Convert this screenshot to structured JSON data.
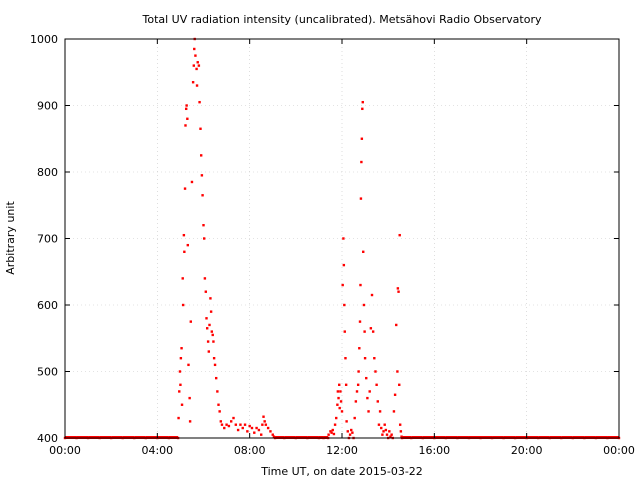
{
  "chart_data": {
    "type": "scatter",
    "title": "Total UV radiation intensity (uncalibrated). Metsähovi Radio Observatory",
    "xlabel": "Time UT, on date 2015-03-22",
    "ylabel": "Arbitrary unit",
    "xlim": [
      0,
      24
    ],
    "ylim": [
      400,
      1000
    ],
    "xticks": [
      0,
      4,
      8,
      12,
      16,
      20,
      24
    ],
    "xtick_labels": [
      "00:00",
      "04:00",
      "08:00",
      "12:00",
      "16:00",
      "20:00",
      "00:00"
    ],
    "yticks": [
      400,
      500,
      600,
      700,
      800,
      900,
      1000
    ],
    "ytick_labels": [
      "400",
      "500",
      "600",
      "700",
      "800",
      "900",
      "1000"
    ],
    "grid": true,
    "series": [
      {
        "color": "#ff0000",
        "marker": "dot",
        "points": [
          [
            0.0,
            400
          ],
          [
            0.5,
            400
          ],
          [
            1.0,
            400
          ],
          [
            1.5,
            400
          ],
          [
            2.0,
            400
          ],
          [
            2.5,
            400
          ],
          [
            3.0,
            400
          ],
          [
            3.5,
            400
          ],
          [
            4.0,
            400
          ],
          [
            4.5,
            400
          ],
          [
            4.9,
            400
          ],
          [
            4.92,
            430
          ],
          [
            4.95,
            470
          ],
          [
            4.98,
            500
          ],
          [
            5.0,
            480
          ],
          [
            5.02,
            520
          ],
          [
            5.05,
            535
          ],
          [
            5.07,
            450
          ],
          [
            5.1,
            640
          ],
          [
            5.12,
            600
          ],
          [
            5.15,
            705
          ],
          [
            5.17,
            680
          ],
          [
            5.2,
            775
          ],
          [
            5.22,
            870
          ],
          [
            5.25,
            895
          ],
          [
            5.27,
            900
          ],
          [
            5.3,
            880
          ],
          [
            5.32,
            690
          ],
          [
            5.35,
            510
          ],
          [
            5.4,
            460
          ],
          [
            5.42,
            425
          ],
          [
            5.45,
            575
          ],
          [
            5.5,
            785
          ],
          [
            5.55,
            935
          ],
          [
            5.58,
            960
          ],
          [
            5.6,
            985
          ],
          [
            5.62,
            1000
          ],
          [
            5.65,
            975
          ],
          [
            5.7,
            955
          ],
          [
            5.72,
            930
          ],
          [
            5.75,
            965
          ],
          [
            5.8,
            960
          ],
          [
            5.83,
            905
          ],
          [
            5.87,
            865
          ],
          [
            5.9,
            825
          ],
          [
            5.93,
            795
          ],
          [
            5.96,
            765
          ],
          [
            6.0,
            720
          ],
          [
            6.03,
            700
          ],
          [
            6.06,
            640
          ],
          [
            6.1,
            620
          ],
          [
            6.13,
            580
          ],
          [
            6.16,
            565
          ],
          [
            6.2,
            545
          ],
          [
            6.23,
            530
          ],
          [
            6.26,
            570
          ],
          [
            6.3,
            610
          ],
          [
            6.33,
            590
          ],
          [
            6.36,
            560
          ],
          [
            6.4,
            555
          ],
          [
            6.43,
            545
          ],
          [
            6.46,
            520
          ],
          [
            6.5,
            510
          ],
          [
            6.55,
            490
          ],
          [
            6.6,
            470
          ],
          [
            6.65,
            450
          ],
          [
            6.7,
            440
          ],
          [
            6.75,
            425
          ],
          [
            6.8,
            420
          ],
          [
            6.9,
            415
          ],
          [
            7.0,
            420
          ],
          [
            7.1,
            418
          ],
          [
            7.2,
            425
          ],
          [
            7.3,
            430
          ],
          [
            7.4,
            420
          ],
          [
            7.5,
            412
          ],
          [
            7.6,
            420
          ],
          [
            7.7,
            415
          ],
          [
            7.8,
            420
          ],
          [
            7.9,
            410
          ],
          [
            8.0,
            418
          ],
          [
            8.1,
            415
          ],
          [
            8.2,
            408
          ],
          [
            8.3,
            415
          ],
          [
            8.4,
            412
          ],
          [
            8.5,
            405
          ],
          [
            8.55,
            420
          ],
          [
            8.6,
            432
          ],
          [
            8.65,
            425
          ],
          [
            8.7,
            420
          ],
          [
            8.8,
            415
          ],
          [
            8.9,
            410
          ],
          [
            9.0,
            405
          ],
          [
            9.05,
            402
          ],
          [
            9.1,
            400
          ],
          [
            9.5,
            400
          ],
          [
            10.0,
            400
          ],
          [
            10.5,
            400
          ],
          [
            11.0,
            400
          ],
          [
            11.2,
            400
          ],
          [
            11.4,
            400
          ],
          [
            11.42,
            405
          ],
          [
            11.5,
            410
          ],
          [
            11.55,
            408
          ],
          [
            11.6,
            412
          ],
          [
            11.65,
            406
          ],
          [
            11.7,
            420
          ],
          [
            11.75,
            430
          ],
          [
            11.8,
            450
          ],
          [
            11.82,
            470
          ],
          [
            11.85,
            460
          ],
          [
            11.88,
            480
          ],
          [
            11.9,
            445
          ],
          [
            11.93,
            470
          ],
          [
            11.96,
            455
          ],
          [
            12.0,
            440
          ],
          [
            12.03,
            630
          ],
          [
            12.06,
            700
          ],
          [
            12.08,
            660
          ],
          [
            12.1,
            600
          ],
          [
            12.12,
            560
          ],
          [
            12.15,
            520
          ],
          [
            12.18,
            480
          ],
          [
            12.2,
            425
          ],
          [
            12.25,
            410
          ],
          [
            12.3,
            400
          ],
          [
            12.35,
            405
          ],
          [
            12.4,
            412
          ],
          [
            12.45,
            408
          ],
          [
            12.5,
            400
          ],
          [
            12.55,
            430
          ],
          [
            12.6,
            455
          ],
          [
            12.65,
            470
          ],
          [
            12.7,
            480
          ],
          [
            12.72,
            500
          ],
          [
            12.75,
            535
          ],
          [
            12.78,
            575
          ],
          [
            12.8,
            630
          ],
          [
            12.82,
            760
          ],
          [
            12.84,
            815
          ],
          [
            12.86,
            850
          ],
          [
            12.88,
            895
          ],
          [
            12.9,
            905
          ],
          [
            12.92,
            680
          ],
          [
            12.95,
            600
          ],
          [
            12.98,
            560
          ],
          [
            13.0,
            520
          ],
          [
            13.05,
            490
          ],
          [
            13.1,
            460
          ],
          [
            13.15,
            440
          ],
          [
            13.2,
            470
          ],
          [
            13.25,
            565
          ],
          [
            13.3,
            615
          ],
          [
            13.35,
            560
          ],
          [
            13.4,
            520
          ],
          [
            13.45,
            500
          ],
          [
            13.5,
            480
          ],
          [
            13.55,
            455
          ],
          [
            13.6,
            420
          ],
          [
            13.65,
            440
          ],
          [
            13.7,
            415
          ],
          [
            13.75,
            405
          ],
          [
            13.8,
            410
          ],
          [
            13.85,
            420
          ],
          [
            13.9,
            412
          ],
          [
            13.95,
            405
          ],
          [
            14.0,
            400
          ],
          [
            14.05,
            410
          ],
          [
            14.1,
            402
          ],
          [
            14.15,
            405
          ],
          [
            14.2,
            400
          ],
          [
            14.25,
            440
          ],
          [
            14.3,
            465
          ],
          [
            14.35,
            570
          ],
          [
            14.4,
            500
          ],
          [
            14.42,
            625
          ],
          [
            14.45,
            620
          ],
          [
            14.48,
            480
          ],
          [
            14.5,
            705
          ],
          [
            14.52,
            420
          ],
          [
            14.55,
            410
          ],
          [
            14.58,
            402
          ],
          [
            14.6,
            400
          ],
          [
            15.0,
            400
          ],
          [
            15.5,
            400
          ],
          [
            16.0,
            400
          ],
          [
            16.5,
            400
          ],
          [
            17.0,
            400
          ],
          [
            17.5,
            400
          ],
          [
            18.0,
            400
          ],
          [
            18.5,
            400
          ],
          [
            19.0,
            400
          ],
          [
            19.5,
            400
          ],
          [
            20.0,
            400
          ],
          [
            20.5,
            400
          ],
          [
            21.0,
            400
          ],
          [
            21.5,
            400
          ],
          [
            22.0,
            400
          ],
          [
            22.5,
            400
          ],
          [
            23.0,
            400
          ],
          [
            23.5,
            400
          ],
          [
            24.0,
            400
          ]
        ]
      }
    ]
  }
}
